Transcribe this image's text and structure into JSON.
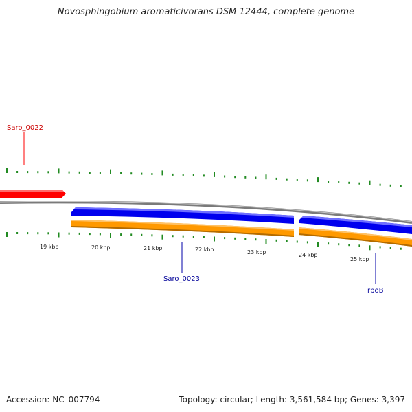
{
  "title": "Novosphingobium aromaticivorans DSM 12444, complete genome",
  "footer": {
    "accession": "Accession: NC_007794",
    "summary": "Topology: circular; Length: 3,561,584 bp; Genes: 3,397"
  },
  "colors": {
    "forward_gene": "#ff0000",
    "reverse_gene": "#0000ee",
    "cds": "#ff9900",
    "backbone": "#888888",
    "ticks": "#228b22",
    "label_forward": "#cc0000",
    "label_reverse": "#000099"
  },
  "genes": [
    {
      "name": "Saro_0022",
      "strand": "forward",
      "label": "Saro_0022"
    },
    {
      "name": "Saro_0023",
      "strand": "reverse",
      "label": "Saro_0023"
    },
    {
      "name": "rpoB",
      "strand": "reverse",
      "label": "rpoB"
    }
  ],
  "kbp_labels": [
    "19 kbp",
    "20 kbp",
    "21 kbp",
    "22 kbp",
    "23 kbp",
    "24 kbp",
    "25 kbp"
  ]
}
